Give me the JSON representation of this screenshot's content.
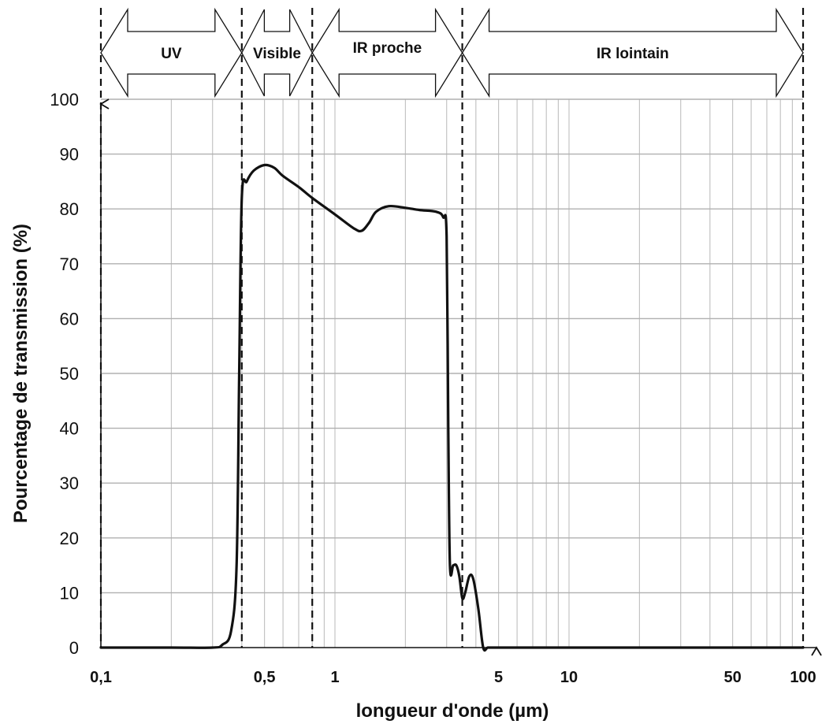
{
  "chart_data": {
    "type": "line",
    "x_scale": "log",
    "xlabel": "longueur d'onde (µm)",
    "ylabel": "Pourcentage de transmission (%)",
    "xlim": [
      0.1,
      100
    ],
    "ylim": [
      0,
      100
    ],
    "grid": true,
    "y_ticks": [
      "0",
      "10",
      "20",
      "30",
      "40",
      "50",
      "60",
      "70",
      "80",
      "90",
      "100"
    ],
    "x_ticks": [
      {
        "value": 0.1,
        "label": "0,1"
      },
      {
        "value": 0.5,
        "label": "0,5"
      },
      {
        "value": 1,
        "label": "1"
      },
      {
        "value": 5,
        "label": "5"
      },
      {
        "value": 10,
        "label": "10"
      },
      {
        "value": 50,
        "label": "50"
      },
      {
        "value": 100,
        "label": "100"
      }
    ],
    "bands": [
      {
        "label": "UV",
        "from": 0.1,
        "to": 0.4
      },
      {
        "label": "Visible",
        "from": 0.4,
        "to": 0.8
      },
      {
        "label": "IR proche",
        "from": 0.8,
        "to": 3.5
      },
      {
        "label": "IR lointain",
        "from": 3.5,
        "to": 100
      }
    ],
    "boundaries": [
      0.1,
      0.4,
      0.8,
      3.5,
      100
    ],
    "series": [
      {
        "color": "#111111",
        "x": [
          0.1,
          0.2,
          0.3,
          0.33,
          0.36,
          0.38,
          0.39,
          0.4,
          0.42,
          0.45,
          0.5,
          0.55,
          0.6,
          0.7,
          0.8,
          1.0,
          1.2,
          1.3,
          1.4,
          1.5,
          1.7,
          2.0,
          2.3,
          2.7,
          2.9,
          3.0,
          3.05,
          3.1,
          3.2,
          3.3,
          3.4,
          3.5,
          3.6,
          3.75,
          3.9,
          4.1,
          4.3,
          4.5,
          4.8,
          6,
          10,
          50,
          100
        ],
        "y": [
          0,
          0,
          0,
          0.5,
          3,
          15,
          50,
          82,
          85,
          87,
          88,
          87.5,
          86,
          84,
          82,
          79,
          76.5,
          76,
          77.5,
          79.5,
          80.5,
          80.2,
          79.8,
          79.5,
          78.5,
          75,
          40,
          15,
          15,
          15,
          13,
          9,
          10,
          13,
          12.5,
          7,
          0,
          0,
          0,
          0,
          0,
          0,
          0
        ]
      }
    ]
  }
}
